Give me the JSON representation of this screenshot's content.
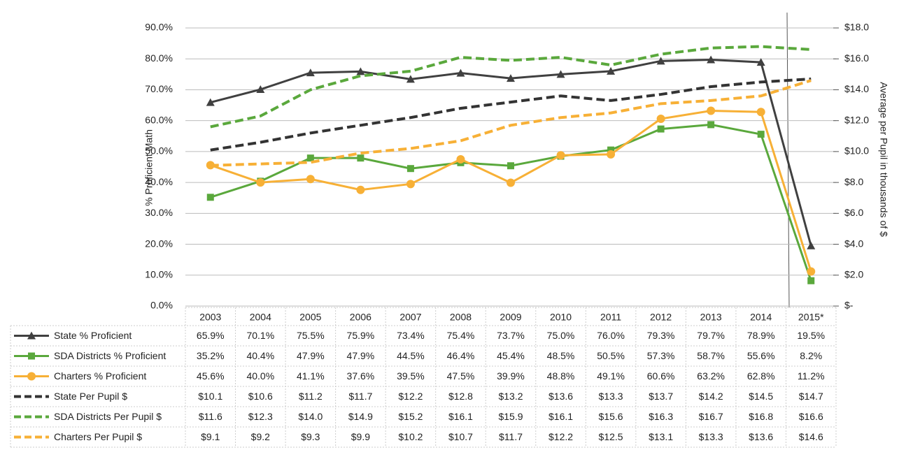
{
  "chart_data": {
    "type": "line",
    "y_label": "% Proficient Math",
    "y2_label": "Average per Pupil in thousands of $",
    "categories": [
      "2003",
      "2004",
      "2005",
      "2006",
      "2007",
      "2008",
      "2009",
      "2010",
      "2011",
      "2012",
      "2013",
      "2014",
      "2015*"
    ],
    "ylim": [
      0,
      90
    ],
    "yticks": [
      {
        "value": 0,
        "label": "0.0%"
      },
      {
        "value": 10,
        "label": "10.0%"
      },
      {
        "value": 20,
        "label": "20.0%"
      },
      {
        "value": 30,
        "label": "30.0%"
      },
      {
        "value": 40,
        "label": "40.0%"
      },
      {
        "value": 50,
        "label": "50.0%"
      },
      {
        "value": 60,
        "label": "60.0%"
      },
      {
        "value": 70,
        "label": "70.0%"
      },
      {
        "value": 80,
        "label": "80.0%"
      },
      {
        "value": 90,
        "label": "90.0%"
      }
    ],
    "y2lim": [
      0,
      18
    ],
    "y2ticks": [
      {
        "value": 0,
        "label": "$-"
      },
      {
        "value": 2,
        "label": "$2.0"
      },
      {
        "value": 4,
        "label": "$4.0"
      },
      {
        "value": 6,
        "label": "$6.0"
      },
      {
        "value": 8,
        "label": "$8.0"
      },
      {
        "value": 10,
        "label": "$10.0"
      },
      {
        "value": 12,
        "label": "$12.0"
      },
      {
        "value": 14,
        "label": "$14.0"
      },
      {
        "value": 16,
        "label": "$16.0"
      },
      {
        "value": 18,
        "label": "$18.0"
      }
    ],
    "grid": true,
    "series": [
      {
        "name": "State % Proficient",
        "color": "#404040",
        "marker": "triangle",
        "line_style": "solid",
        "values": [
          65.9,
          70.1,
          75.5,
          75.9,
          73.4,
          75.4,
          73.7,
          75.0,
          76.0,
          79.3,
          79.7,
          78.9,
          19.5
        ],
        "value_labels": [
          "65.9%",
          "70.1%",
          "75.5%",
          "75.9%",
          "73.4%",
          "75.4%",
          "73.7%",
          "75.0%",
          "76.0%",
          "79.3%",
          "79.7%",
          "78.9%",
          "19.5%"
        ]
      },
      {
        "name": "SDA Districts % Proficient",
        "color": "#5aa83c",
        "marker": "square",
        "line_style": "solid",
        "values": [
          35.2,
          40.4,
          47.9,
          47.9,
          44.5,
          46.4,
          45.4,
          48.5,
          50.5,
          57.3,
          58.7,
          55.6,
          8.2
        ],
        "value_labels": [
          "35.2%",
          "40.4%",
          "47.9%",
          "47.9%",
          "44.5%",
          "46.4%",
          "45.4%",
          "48.5%",
          "50.5%",
          "57.3%",
          "58.7%",
          "55.6%",
          "8.2%"
        ]
      },
      {
        "name": "Charters % Proficient",
        "color": "#f7b036",
        "marker": "circle",
        "line_style": "solid",
        "values": [
          45.6,
          40.0,
          41.1,
          37.6,
          39.5,
          47.5,
          39.9,
          48.8,
          49.1,
          60.6,
          63.2,
          62.8,
          11.2
        ],
        "value_labels": [
          "45.6%",
          "40.0%",
          "41.1%",
          "37.6%",
          "39.5%",
          "47.5%",
          "39.9%",
          "48.8%",
          "49.1%",
          "60.6%",
          "63.2%",
          "62.8%",
          "11.2%"
        ]
      },
      {
        "name": "State Per Pupil $",
        "color": "#333333",
        "line_style": "dashed",
        "axis": "y2",
        "values": [
          10.1,
          10.6,
          11.2,
          11.7,
          12.2,
          12.8,
          13.2,
          13.6,
          13.3,
          13.7,
          14.2,
          14.5,
          14.7
        ],
        "value_labels": [
          "$10.1",
          "$10.6",
          "$11.2",
          "$11.7",
          "$12.2",
          "$12.8",
          "$13.2",
          "$13.6",
          "$13.3",
          "$13.7",
          "$14.2",
          "$14.5",
          "$14.7"
        ]
      },
      {
        "name": "SDA Districts Per Pupil $",
        "color": "#5aa83c",
        "line_style": "dashed",
        "axis": "y2",
        "values": [
          11.6,
          12.3,
          14.0,
          14.9,
          15.2,
          16.1,
          15.9,
          16.1,
          15.6,
          16.3,
          16.7,
          16.8,
          16.6
        ],
        "value_labels": [
          "$11.6",
          "$12.3",
          "$14.0",
          "$14.9",
          "$15.2",
          "$16.1",
          "$15.9",
          "$16.1",
          "$15.6",
          "$16.3",
          "$16.7",
          "$16.8",
          "$16.6"
        ]
      },
      {
        "name": "Charters Per Pupil $",
        "color": "#f7b036",
        "line_style": "dashed",
        "axis": "y2",
        "values": [
          9.1,
          9.2,
          9.3,
          9.9,
          10.2,
          10.7,
          11.7,
          12.2,
          12.5,
          13.1,
          13.3,
          13.6,
          14.6
        ],
        "value_labels": [
          "$9.1",
          "$9.2",
          "$9.3",
          "$9.9",
          "$10.2",
          "$10.7",
          "$11.7",
          "$12.2",
          "$12.5",
          "$13.1",
          "$13.3",
          "$13.6",
          "$14.6"
        ]
      }
    ]
  }
}
